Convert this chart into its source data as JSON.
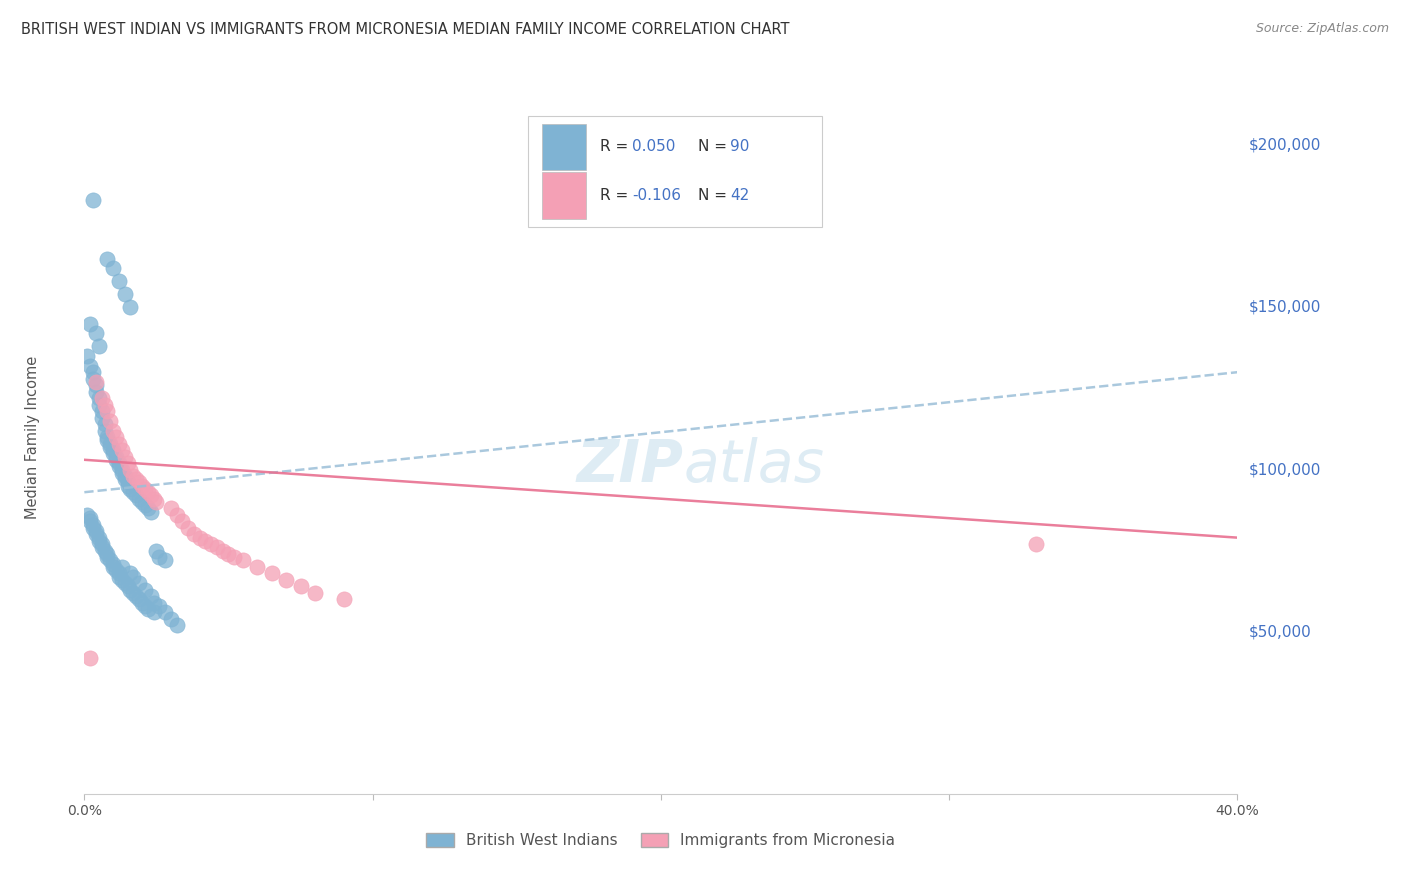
{
  "title": "BRITISH WEST INDIAN VS IMMIGRANTS FROM MICRONESIA MEDIAN FAMILY INCOME CORRELATION CHART",
  "source": "Source: ZipAtlas.com",
  "ylabel": "Median Family Income",
  "y_ticks": [
    50000,
    100000,
    150000,
    200000
  ],
  "y_tick_labels": [
    "$50,000",
    "$100,000",
    "$150,000",
    "$200,000"
  ],
  "xlim": [
    0.0,
    0.4
  ],
  "ylim": [
    0,
    220000
  ],
  "blue_color": "#7fb3d3",
  "pink_color": "#f4a0b5",
  "blue_line_color": "#9bbfd8",
  "pink_line_color": "#e87090",
  "title_color": "#333333",
  "source_color": "#888888",
  "right_label_color": "#4472c4",
  "watermark_color": "#d0e4f0",
  "blue_x": [
    0.003,
    0.008,
    0.01,
    0.012,
    0.014,
    0.016,
    0.002,
    0.004,
    0.005,
    0.001,
    0.002,
    0.003,
    0.003,
    0.004,
    0.004,
    0.005,
    0.005,
    0.006,
    0.006,
    0.007,
    0.007,
    0.008,
    0.008,
    0.009,
    0.009,
    0.01,
    0.01,
    0.011,
    0.011,
    0.012,
    0.012,
    0.013,
    0.013,
    0.014,
    0.014,
    0.015,
    0.015,
    0.016,
    0.017,
    0.018,
    0.019,
    0.02,
    0.021,
    0.022,
    0.023,
    0.001,
    0.002,
    0.002,
    0.003,
    0.003,
    0.004,
    0.004,
    0.005,
    0.005,
    0.006,
    0.006,
    0.007,
    0.008,
    0.008,
    0.009,
    0.01,
    0.01,
    0.011,
    0.012,
    0.012,
    0.013,
    0.014,
    0.015,
    0.016,
    0.017,
    0.018,
    0.019,
    0.02,
    0.021,
    0.022,
    0.024,
    0.025,
    0.026,
    0.028,
    0.013,
    0.016,
    0.017,
    0.019,
    0.021,
    0.023,
    0.024,
    0.026,
    0.028,
    0.03,
    0.032
  ],
  "blue_y": [
    183000,
    165000,
    162000,
    158000,
    154000,
    150000,
    145000,
    142000,
    138000,
    135000,
    132000,
    130000,
    128000,
    126000,
    124000,
    122000,
    120000,
    118000,
    116000,
    114000,
    112000,
    110000,
    109000,
    108000,
    107000,
    106000,
    105000,
    104000,
    103000,
    102000,
    101000,
    100000,
    99000,
    98000,
    97000,
    96000,
    95000,
    94000,
    93000,
    92000,
    91000,
    90000,
    89000,
    88000,
    87000,
    86000,
    85000,
    84000,
    83000,
    82000,
    81000,
    80000,
    79000,
    78000,
    77000,
    76000,
    75000,
    74000,
    73000,
    72000,
    71000,
    70000,
    69000,
    68000,
    67000,
    66000,
    65000,
    64000,
    63000,
    62000,
    61000,
    60000,
    59000,
    58000,
    57000,
    56000,
    75000,
    73000,
    72000,
    70000,
    68000,
    67000,
    65000,
    63000,
    61000,
    59000,
    58000,
    56000,
    54000,
    52000
  ],
  "pink_x": [
    0.002,
    0.004,
    0.006,
    0.007,
    0.008,
    0.009,
    0.01,
    0.011,
    0.012,
    0.013,
    0.014,
    0.015,
    0.016,
    0.017,
    0.018,
    0.019,
    0.02,
    0.021,
    0.022,
    0.023,
    0.024,
    0.025,
    0.03,
    0.032,
    0.034,
    0.036,
    0.038,
    0.04,
    0.042,
    0.044,
    0.046,
    0.048,
    0.05,
    0.052,
    0.055,
    0.06,
    0.065,
    0.07,
    0.075,
    0.08,
    0.09,
    0.33
  ],
  "pink_y": [
    42000,
    127000,
    122000,
    120000,
    118000,
    115000,
    112000,
    110000,
    108000,
    106000,
    104000,
    102000,
    100000,
    98000,
    97000,
    96000,
    95000,
    94000,
    93000,
    92000,
    91000,
    90000,
    88000,
    86000,
    84000,
    82000,
    80000,
    79000,
    78000,
    77000,
    76000,
    75000,
    74000,
    73000,
    72000,
    70000,
    68000,
    66000,
    64000,
    62000,
    60000,
    77000
  ],
  "blue_trend_x": [
    0.0,
    0.4
  ],
  "blue_trend_y": [
    93000,
    130000
  ],
  "pink_trend_x": [
    0.0,
    0.4
  ],
  "pink_trend_y": [
    103000,
    79000
  ],
  "legend_items": [
    {
      "color": "#7fb3d3",
      "r_label": "R = ",
      "r_val": "0.050",
      "n_label": "N = ",
      "n_val": "90"
    },
    {
      "color": "#f4a0b5",
      "r_label": "R = ",
      "r_val": "-0.106",
      "n_label": "N = ",
      "n_val": "42"
    }
  ],
  "bottom_legend": [
    "British West Indians",
    "Immigrants from Micronesia"
  ]
}
